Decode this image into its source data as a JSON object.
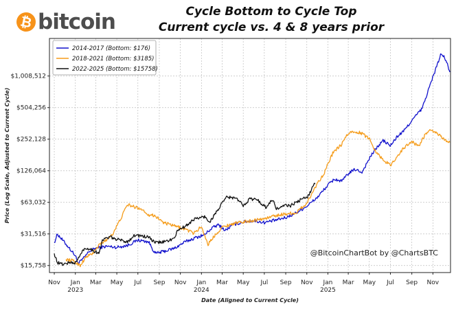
{
  "logo": {
    "symbol": "₿",
    "word": "bitcoin",
    "color": "#f7931a"
  },
  "chart_data": {
    "type": "line",
    "title": "Cycle Bottom to Cycle Top",
    "subtitle": "Current cycle vs. 4 & 8 years prior",
    "xlabel": "Date (Aligned to Current Cycle)",
    "ylabel": "Price (Log Scale, Adjusted to Current Cycle)",
    "y_scale": "log",
    "ylim": [
      13500,
      2300000
    ],
    "xlim": [
      "2022-10-18",
      "2025-12-22"
    ],
    "y_ticks": [
      {
        "value": 15758,
        "label": "$15,758"
      },
      {
        "value": 31516,
        "label": "$31,516"
      },
      {
        "value": 63032,
        "label": "$63,032"
      },
      {
        "value": 126064,
        "label": "$126,064"
      },
      {
        "value": 252128,
        "label": "$252,128"
      },
      {
        "value": 504256,
        "label": "$504,256"
      },
      {
        "value": 1008512,
        "label": "$1,008,512"
      }
    ],
    "x_ticks": [
      {
        "date": "2022-11-01",
        "label": "Nov",
        "year": ""
      },
      {
        "date": "2023-01-01",
        "label": "Jan",
        "year": "2023"
      },
      {
        "date": "2023-03-01",
        "label": "Mar",
        "year": ""
      },
      {
        "date": "2023-05-01",
        "label": "May",
        "year": ""
      },
      {
        "date": "2023-07-01",
        "label": "Jul",
        "year": ""
      },
      {
        "date": "2023-09-01",
        "label": "Sep",
        "year": ""
      },
      {
        "date": "2023-11-01",
        "label": "Nov",
        "year": ""
      },
      {
        "date": "2024-01-01",
        "label": "Jan",
        "year": "2024"
      },
      {
        "date": "2024-03-01",
        "label": "Mar",
        "year": ""
      },
      {
        "date": "2024-05-01",
        "label": "May",
        "year": ""
      },
      {
        "date": "2024-07-01",
        "label": "Jul",
        "year": ""
      },
      {
        "date": "2024-09-01",
        "label": "Sep",
        "year": ""
      },
      {
        "date": "2024-11-01",
        "label": "Nov",
        "year": ""
      },
      {
        "date": "2025-01-01",
        "label": "Jan",
        "year": "2025"
      },
      {
        "date": "2025-03-01",
        "label": "Mar",
        "year": ""
      },
      {
        "date": "2025-05-01",
        "label": "May",
        "year": ""
      },
      {
        "date": "2025-07-01",
        "label": "Jul",
        "year": ""
      },
      {
        "date": "2025-09-01",
        "label": "Sep",
        "year": ""
      },
      {
        "date": "2025-11-01",
        "label": "Nov",
        "year": ""
      }
    ],
    "grid": true,
    "legend_position": "top-left",
    "annotation": "@BitcoinChartBot by @ChartsBTC",
    "series": [
      {
        "name": "2014-2017 (Bottom: $176)",
        "color": "#1010cc",
        "points": [
          [
            "2022-11-01",
            26000
          ],
          [
            "2022-11-10",
            31500
          ],
          [
            "2022-11-25",
            27500
          ],
          [
            "2022-12-15",
            23000
          ],
          [
            "2023-01-01",
            19500
          ],
          [
            "2023-01-10",
            16500
          ],
          [
            "2023-01-25",
            18500
          ],
          [
            "2023-02-10",
            21500
          ],
          [
            "2023-03-01",
            23000
          ],
          [
            "2023-04-01",
            24000
          ],
          [
            "2023-05-01",
            23500
          ],
          [
            "2023-06-01",
            24500
          ],
          [
            "2023-07-01",
            27500
          ],
          [
            "2023-08-01",
            26500
          ],
          [
            "2023-08-20",
            20500
          ],
          [
            "2023-09-15",
            21500
          ],
          [
            "2023-10-15",
            23000
          ],
          [
            "2023-11-15",
            26500
          ],
          [
            "2023-12-15",
            29000
          ],
          [
            "2024-01-10",
            31000
          ],
          [
            "2024-02-01",
            36000
          ],
          [
            "2024-02-20",
            38500
          ],
          [
            "2024-03-10",
            34000
          ],
          [
            "2024-04-01",
            38500
          ],
          [
            "2024-05-01",
            41000
          ],
          [
            "2024-06-01",
            42000
          ],
          [
            "2024-07-01",
            40500
          ],
          [
            "2024-08-01",
            42500
          ],
          [
            "2024-09-01",
            45000
          ],
          [
            "2024-10-01",
            50000
          ],
          [
            "2024-11-01",
            58000
          ],
          [
            "2024-12-01",
            70000
          ],
          [
            "2025-01-01",
            92000
          ],
          [
            "2025-01-20",
            105000
          ],
          [
            "2025-02-10",
            100000
          ],
          [
            "2025-03-01",
            118000
          ],
          [
            "2025-03-20",
            130000
          ],
          [
            "2025-04-10",
            122000
          ],
          [
            "2025-05-01",
            165000
          ],
          [
            "2025-05-20",
            205000
          ],
          [
            "2025-06-10",
            245000
          ],
          [
            "2025-07-01",
            218000
          ],
          [
            "2025-07-20",
            265000
          ],
          [
            "2025-08-10",
            305000
          ],
          [
            "2025-09-01",
            380000
          ],
          [
            "2025-10-01",
            495000
          ],
          [
            "2025-10-20",
            760000
          ],
          [
            "2025-11-10",
            1200000
          ],
          [
            "2025-11-25",
            1650000
          ],
          [
            "2025-12-05",
            1500000
          ],
          [
            "2025-12-15",
            1250000
          ],
          [
            "2025-12-20",
            1100000
          ]
        ]
      },
      {
        "name": "2018-2021 (Bottom: $3185)",
        "color": "#f59c1a",
        "points": [
          [
            "2022-12-05",
            18000
          ],
          [
            "2022-12-25",
            17500
          ],
          [
            "2023-01-15",
            15800
          ],
          [
            "2023-02-01",
            19000
          ],
          [
            "2023-02-20",
            20500
          ],
          [
            "2023-03-15",
            25500
          ],
          [
            "2023-04-01",
            27500
          ],
          [
            "2023-04-20",
            32000
          ],
          [
            "2023-05-10",
            42500
          ],
          [
            "2023-06-01",
            60000
          ],
          [
            "2023-06-20",
            57000
          ],
          [
            "2023-07-10",
            55000
          ],
          [
            "2023-08-01",
            48000
          ],
          [
            "2023-08-20",
            47000
          ],
          [
            "2023-09-15",
            40000
          ],
          [
            "2023-10-15",
            37500
          ],
          [
            "2023-11-15",
            35000
          ],
          [
            "2023-12-10",
            32000
          ],
          [
            "2024-01-01",
            37000
          ],
          [
            "2024-01-20",
            25000
          ],
          [
            "2024-02-10",
            31000
          ],
          [
            "2024-03-01",
            36500
          ],
          [
            "2024-04-01",
            39500
          ],
          [
            "2024-05-01",
            41000
          ],
          [
            "2024-06-01",
            42500
          ],
          [
            "2024-07-01",
            44000
          ],
          [
            "2024-08-01",
            47000
          ],
          [
            "2024-09-01",
            49000
          ],
          [
            "2024-10-01",
            50000
          ],
          [
            "2024-11-01",
            62000
          ],
          [
            "2024-12-01",
            95000
          ],
          [
            "2024-12-20",
            118000
          ],
          [
            "2025-01-15",
            185000
          ],
          [
            "2025-02-10",
            225000
          ],
          [
            "2025-02-28",
            285000
          ],
          [
            "2025-03-20",
            300000
          ],
          [
            "2025-04-10",
            285000
          ],
          [
            "2025-05-01",
            255000
          ],
          [
            "2025-05-20",
            192000
          ],
          [
            "2025-06-10",
            160000
          ],
          [
            "2025-07-01",
            142000
          ],
          [
            "2025-07-20",
            172000
          ],
          [
            "2025-08-10",
            210000
          ],
          [
            "2025-09-01",
            240000
          ],
          [
            "2025-09-20",
            215000
          ],
          [
            "2025-10-10",
            280000
          ],
          [
            "2025-10-25",
            305000
          ],
          [
            "2025-11-10",
            292000
          ],
          [
            "2025-11-25",
            265000
          ],
          [
            "2025-12-10",
            245000
          ],
          [
            "2025-12-20",
            235000
          ]
        ]
      },
      {
        "name": "2022-2025 (Bottom: $15758)",
        "color": "#111111",
        "points": [
          [
            "2022-11-01",
            20500
          ],
          [
            "2022-11-10",
            16800
          ],
          [
            "2022-11-25",
            16200
          ],
          [
            "2022-12-15",
            16800
          ],
          [
            "2023-01-01",
            16700
          ],
          [
            "2023-01-10",
            18500
          ],
          [
            "2023-01-25",
            22500
          ],
          [
            "2023-02-10",
            23000
          ],
          [
            "2023-03-10",
            20500
          ],
          [
            "2023-03-20",
            27500
          ],
          [
            "2023-04-10",
            29500
          ],
          [
            "2023-05-01",
            28000
          ],
          [
            "2023-06-01",
            26500
          ],
          [
            "2023-06-20",
            30500
          ],
          [
            "2023-07-10",
            30200
          ],
          [
            "2023-08-01",
            29300
          ],
          [
            "2023-08-20",
            26000
          ],
          [
            "2023-09-15",
            26500
          ],
          [
            "2023-10-15",
            28500
          ],
          [
            "2023-10-25",
            34500
          ],
          [
            "2023-11-15",
            37000
          ],
          [
            "2023-12-10",
            43500
          ],
          [
            "2024-01-10",
            46000
          ],
          [
            "2024-01-25",
            41000
          ],
          [
            "2024-02-15",
            52000
          ],
          [
            "2024-03-14",
            71000
          ],
          [
            "2024-04-10",
            69000
          ],
          [
            "2024-05-01",
            59000
          ],
          [
            "2024-05-20",
            68000
          ],
          [
            "2024-06-10",
            67000
          ],
          [
            "2024-07-05",
            56500
          ],
          [
            "2024-07-25",
            67000
          ],
          [
            "2024-08-05",
            54500
          ],
          [
            "2024-09-01",
            59000
          ],
          [
            "2024-09-15",
            58500
          ],
          [
            "2024-10-15",
            67000
          ],
          [
            "2024-11-01",
            70000
          ],
          [
            "2024-11-10",
            78000
          ],
          [
            "2024-11-20",
            92000
          ],
          [
            "2024-11-25",
            94000
          ]
        ]
      }
    ]
  }
}
